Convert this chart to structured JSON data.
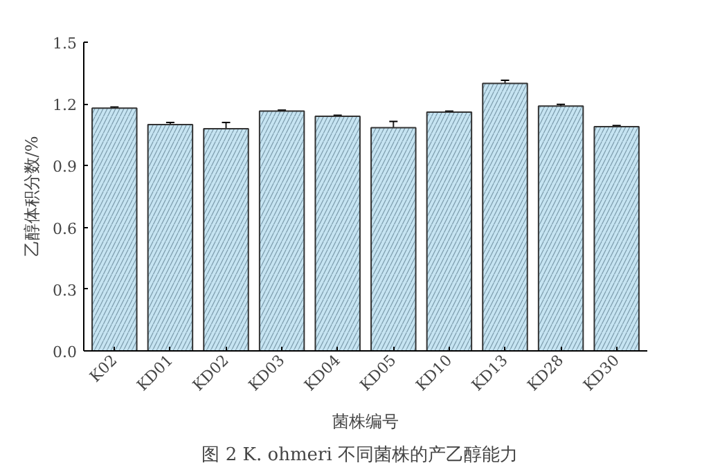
{
  "chart_data": {
    "type": "bar",
    "title": "图 2   K. ohmeri 不同菌株的产乙醇能力",
    "xlabel": "菌株编号",
    "ylabel": "乙醇体积分数/%",
    "categories": [
      "K02",
      "KD01",
      "KD02",
      "KD03",
      "KD04",
      "KD05",
      "KD10",
      "KD13",
      "KD28",
      "KD30"
    ],
    "values": [
      1.18,
      1.1,
      1.08,
      1.165,
      1.14,
      1.085,
      1.16,
      1.3,
      1.19,
      1.09
    ],
    "errors": [
      0.005,
      0.01,
      0.03,
      0.005,
      0.005,
      0.03,
      0.005,
      0.015,
      0.008,
      0.005
    ],
    "color": "#c6e4f2",
    "ylim": [
      0,
      1.5
    ],
    "yticks": [
      {
        "value": 0,
        "label": "0.0"
      },
      0.3,
      0.6,
      0.9,
      1.2,
      1.5
    ],
    "grid": false
  }
}
